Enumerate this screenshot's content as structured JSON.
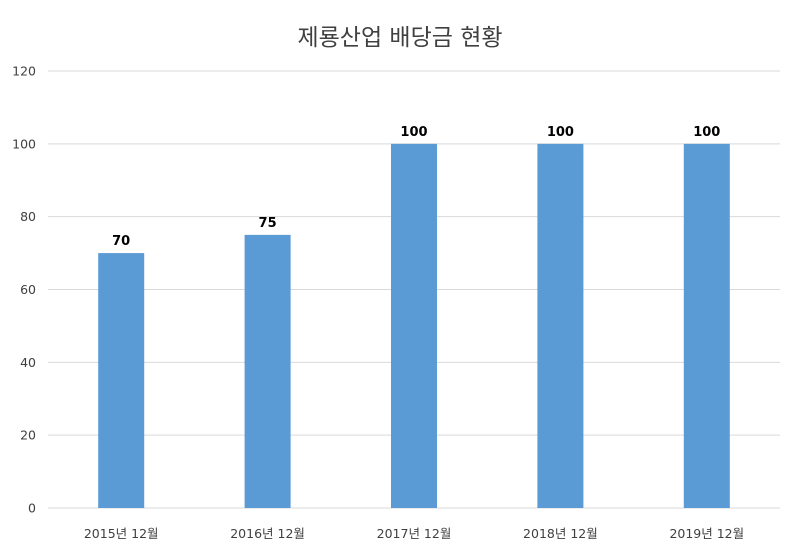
{
  "chart_data": {
    "type": "bar",
    "title": "제룡산업 배당금 현황",
    "categories": [
      "2015년 12월",
      "2016년 12월",
      "2017년 12월",
      "2018년 12월",
      "2019년 12월"
    ],
    "values": [
      70,
      75,
      100,
      100,
      100
    ],
    "data_labels": [
      "70",
      "75",
      "100",
      "100",
      "100"
    ],
    "yticks": [
      0,
      20,
      40,
      60,
      80,
      100,
      120
    ],
    "ylim": [
      0,
      120
    ],
    "grid": true,
    "legend": "none",
    "colors": {
      "bar": "#5b9bd5",
      "grid": "#d9d9d9",
      "axis_text": "#404040",
      "data_label": "#000000"
    }
  }
}
